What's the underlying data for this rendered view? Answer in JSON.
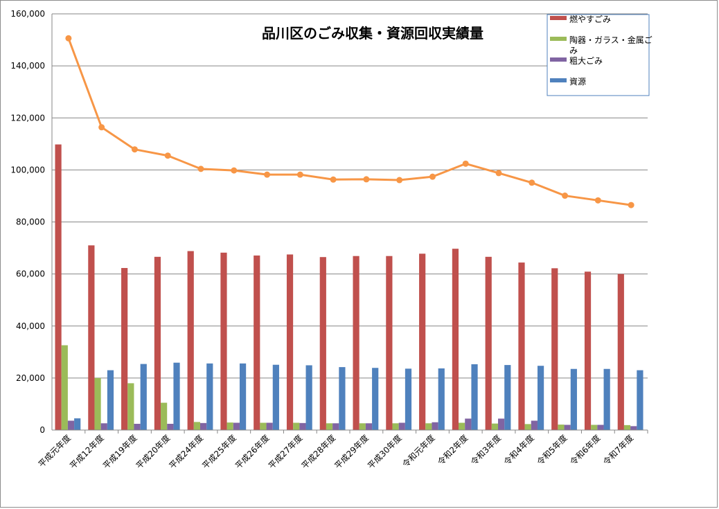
{
  "chart_data": {
    "type": "bar",
    "title": "品川区のごみ収集・資源回収実績量",
    "ylim": [
      0,
      160000
    ],
    "yticks": [
      0,
      20000,
      40000,
      60000,
      80000,
      100000,
      120000,
      140000,
      160000
    ],
    "ytick_labels": [
      "0",
      "20,000",
      "40,000",
      "60,000",
      "80,000",
      "100,000",
      "120,000",
      "140,000",
      "160,000"
    ],
    "grid": true,
    "legend_position": "top-right",
    "categories": [
      "平成元年度",
      "平成12年度",
      "平成19年度",
      "平成20年度",
      "平成24年度",
      "平成25年度",
      "平成26年度",
      "平成27年度",
      "平成28年度",
      "平成29年度",
      "平成30年度",
      "令和元年度",
      "令和2年度",
      "令和3年度",
      "令和4年度",
      "令和5年度",
      "令和6年度",
      "令和7年度"
    ],
    "series": [
      {
        "name": "燃やすごみ",
        "kind": "bar",
        "color": "#c0504d",
        "values": [
          109800,
          71000,
          62300,
          66600,
          68800,
          68200,
          67100,
          67500,
          66500,
          66900,
          66900,
          67800,
          69700,
          66600,
          64400,
          62200,
          60900,
          60000
        ]
      },
      {
        "name": "陶器・ガラス・金属ごみ",
        "kind": "bar",
        "color": "#9bbb59",
        "values": [
          32600,
          20000,
          18000,
          10500,
          3100,
          2900,
          2800,
          2800,
          2600,
          2600,
          2600,
          2600,
          2800,
          2500,
          2300,
          2100,
          2000,
          1900
        ]
      },
      {
        "name": "粗大ごみ",
        "kind": "bar",
        "color": "#8064a2",
        "values": [
          3600,
          2600,
          2400,
          2400,
          2700,
          2800,
          2800,
          2700,
          2600,
          2600,
          2800,
          3000,
          4400,
          4400,
          3600,
          2000,
          2000,
          1500
        ]
      },
      {
        "name": "資源",
        "kind": "bar",
        "color": "#4f81bd",
        "values": [
          4500,
          23000,
          25400,
          25900,
          25600,
          25600,
          25100,
          24900,
          24200,
          23900,
          23600,
          23700,
          25300,
          25000,
          24700,
          23500,
          23500,
          23000
        ]
      },
      {
        "kind": "line",
        "color": "#f79646",
        "values": [
          150600,
          116400,
          107900,
          105500,
          100400,
          99800,
          98200,
          98200,
          96300,
          96400,
          96100,
          97400,
          102400,
          98800,
          95100,
          90100,
          88300,
          86500
        ]
      }
    ]
  }
}
